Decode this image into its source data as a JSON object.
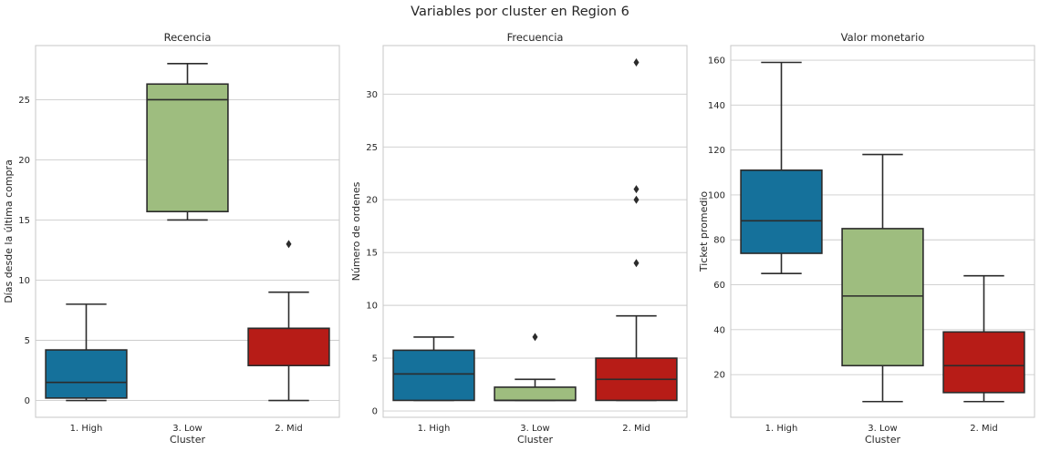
{
  "suptitle": "Variables por cluster en Region 6",
  "colors": {
    "high": "#15719b",
    "low": "#9ebd7f",
    "mid": "#b71c17",
    "grid": "#cccccc",
    "spine": "#cccccc",
    "line": "#2b2b2b",
    "text": "#262626"
  },
  "chart_data": [
    {
      "type": "box",
      "title": "Recencia",
      "xlabel": "Cluster",
      "ylabel": "Días desde la última compra",
      "categories": [
        "1. High",
        "3. Low",
        "2. Mid"
      ],
      "ylim": [
        -1.4,
        29.5
      ],
      "yticks": [
        0,
        5,
        10,
        15,
        20,
        25
      ],
      "grid": true,
      "boxes": [
        {
          "category": "1. High",
          "color_key": "high",
          "whislo": 0,
          "q1": 0.2,
          "med": 1.5,
          "q3": 4.2,
          "whishi": 8,
          "fliers": []
        },
        {
          "category": "3. Low",
          "color_key": "low",
          "whislo": 15,
          "q1": 15.7,
          "med": 25,
          "q3": 26.3,
          "whishi": 28,
          "fliers": []
        },
        {
          "category": "2. Mid",
          "color_key": "mid",
          "whislo": 0,
          "q1": 2.9,
          "med": 6,
          "q3": 6,
          "whishi": 9,
          "fliers": [
            13
          ]
        }
      ]
    },
    {
      "type": "box",
      "title": "Frecuencia",
      "xlabel": "Cluster",
      "ylabel": "Número de ordenes",
      "categories": [
        "1. High",
        "3. Low",
        "2. Mid"
      ],
      "ylim": [
        -0.6,
        34.6
      ],
      "yticks": [
        0,
        5,
        10,
        15,
        20,
        25,
        30
      ],
      "grid": true,
      "boxes": [
        {
          "category": "1. High",
          "color_key": "high",
          "whislo": 1,
          "q1": 1,
          "med": 3.5,
          "q3": 5.75,
          "whishi": 7,
          "fliers": []
        },
        {
          "category": "3. Low",
          "color_key": "low",
          "whislo": 1,
          "q1": 1,
          "med": 1,
          "q3": 2.25,
          "whishi": 3,
          "fliers": [
            7
          ]
        },
        {
          "category": "2. Mid",
          "color_key": "mid",
          "whislo": 1,
          "q1": 1,
          "med": 3,
          "q3": 5,
          "whishi": 9,
          "fliers": [
            14,
            20,
            21,
            33
          ]
        }
      ]
    },
    {
      "type": "box",
      "title": "Valor monetario",
      "xlabel": "Cluster",
      "ylabel": "Ticket promedio",
      "categories": [
        "1. High",
        "3. Low",
        "2. Mid"
      ],
      "ylim": [
        1,
        166.5
      ],
      "yticks": [
        20,
        40,
        60,
        80,
        100,
        120,
        140,
        160
      ],
      "grid": true,
      "boxes": [
        {
          "category": "1. High",
          "color_key": "high",
          "whislo": 65,
          "q1": 74,
          "med": 88.5,
          "q3": 111,
          "whishi": 159,
          "fliers": []
        },
        {
          "category": "3. Low",
          "color_key": "low",
          "whislo": 8,
          "q1": 24,
          "med": 55,
          "q3": 85,
          "whishi": 118,
          "fliers": []
        },
        {
          "category": "2. Mid",
          "color_key": "mid",
          "whislo": 8,
          "q1": 12,
          "med": 24,
          "q3": 39,
          "whishi": 64,
          "fliers": []
        }
      ]
    }
  ]
}
